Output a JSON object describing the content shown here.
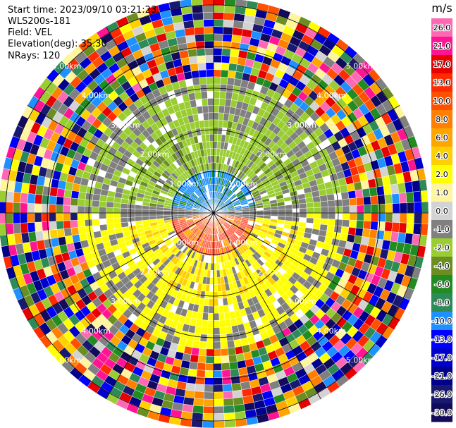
{
  "header": {
    "start_time": "Start time: 2023/09/10 03:21:23",
    "instrument": "WLS200s-181",
    "field": "Field: VEL",
    "elevation": "Elevation(deg): 35.30",
    "nrays": "NRays: 120"
  },
  "ppi": {
    "ring_labels": [
      "1.00km",
      "2.00km",
      "3.00km",
      "4.00km",
      "5.00km"
    ],
    "max_range_km": 5.5
  },
  "colorbar": {
    "unit": "m/s",
    "ticks": [
      "26.0",
      "21.0",
      "17.0",
      "13.0",
      "10.0",
      "8.0",
      "6.0",
      "4.0",
      "2.0",
      "1.0",
      "0.0",
      "-1.0",
      "-2.0",
      "-4.0",
      "-6.0",
      "-8.0",
      "-10.0",
      "-13.0",
      "-17.0",
      "-21.0",
      "-26.0",
      "-30.0"
    ],
    "colors": [
      "#ff69b4",
      "#ff1493",
      "#e60000",
      "#ff2a00",
      "#ff5000",
      "#ff7f00",
      "#ffa500",
      "#ffd000",
      "#ffff00",
      "#fff59d",
      "#d3d3d3",
      "#808080",
      "#9acd32",
      "#6b8e23",
      "#228b22",
      "#2e8b57",
      "#1e90ff",
      "#0000ff",
      "#0000cd",
      "#00008b",
      "#191970",
      "#120a5a"
    ]
  }
}
